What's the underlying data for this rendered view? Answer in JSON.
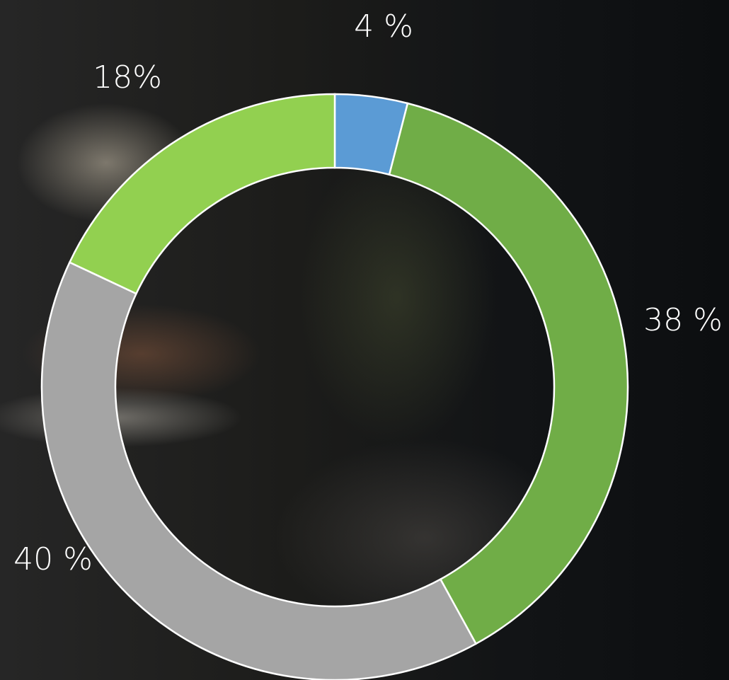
{
  "chart_data": {
    "type": "donut",
    "values": [
      4,
      38,
      40,
      18
    ],
    "value_labels": [
      "4 %",
      "38 %",
      "40 %",
      "18%"
    ],
    "colors": [
      "#5b9bd5",
      "#70ad47",
      "#a5a5a5",
      "#92d050"
    ]
  }
}
